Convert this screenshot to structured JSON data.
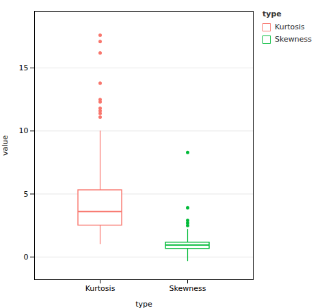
{
  "chart_data": {
    "type": "box",
    "x_label": "type",
    "y_label": "value",
    "legend_title": "type",
    "categories": [
      "Kurtosis",
      "Skewness"
    ],
    "series": [
      {
        "name": "Kurtosis",
        "color": "#F8766D",
        "whisker_low": 1.0,
        "q1": 2.5,
        "median": 3.6,
        "q3": 5.3,
        "whisker_high": 10.0,
        "outliers": [
          11.1,
          11.4,
          11.6,
          11.8,
          12.3,
          12.5,
          13.8,
          16.2,
          17.1,
          17.6
        ]
      },
      {
        "name": "Skewness",
        "color": "#00BA38",
        "whisker_low": -0.35,
        "q1": 0.65,
        "median": 0.95,
        "q3": 1.15,
        "whisker_high": 2.2,
        "outliers": [
          2.5,
          2.7,
          2.9,
          3.9,
          8.3
        ]
      }
    ],
    "ylim": [
      -1.8,
      19.5
    ],
    "yticks": [
      0,
      5,
      10,
      15
    ],
    "grid": true,
    "legend": "upper right"
  }
}
